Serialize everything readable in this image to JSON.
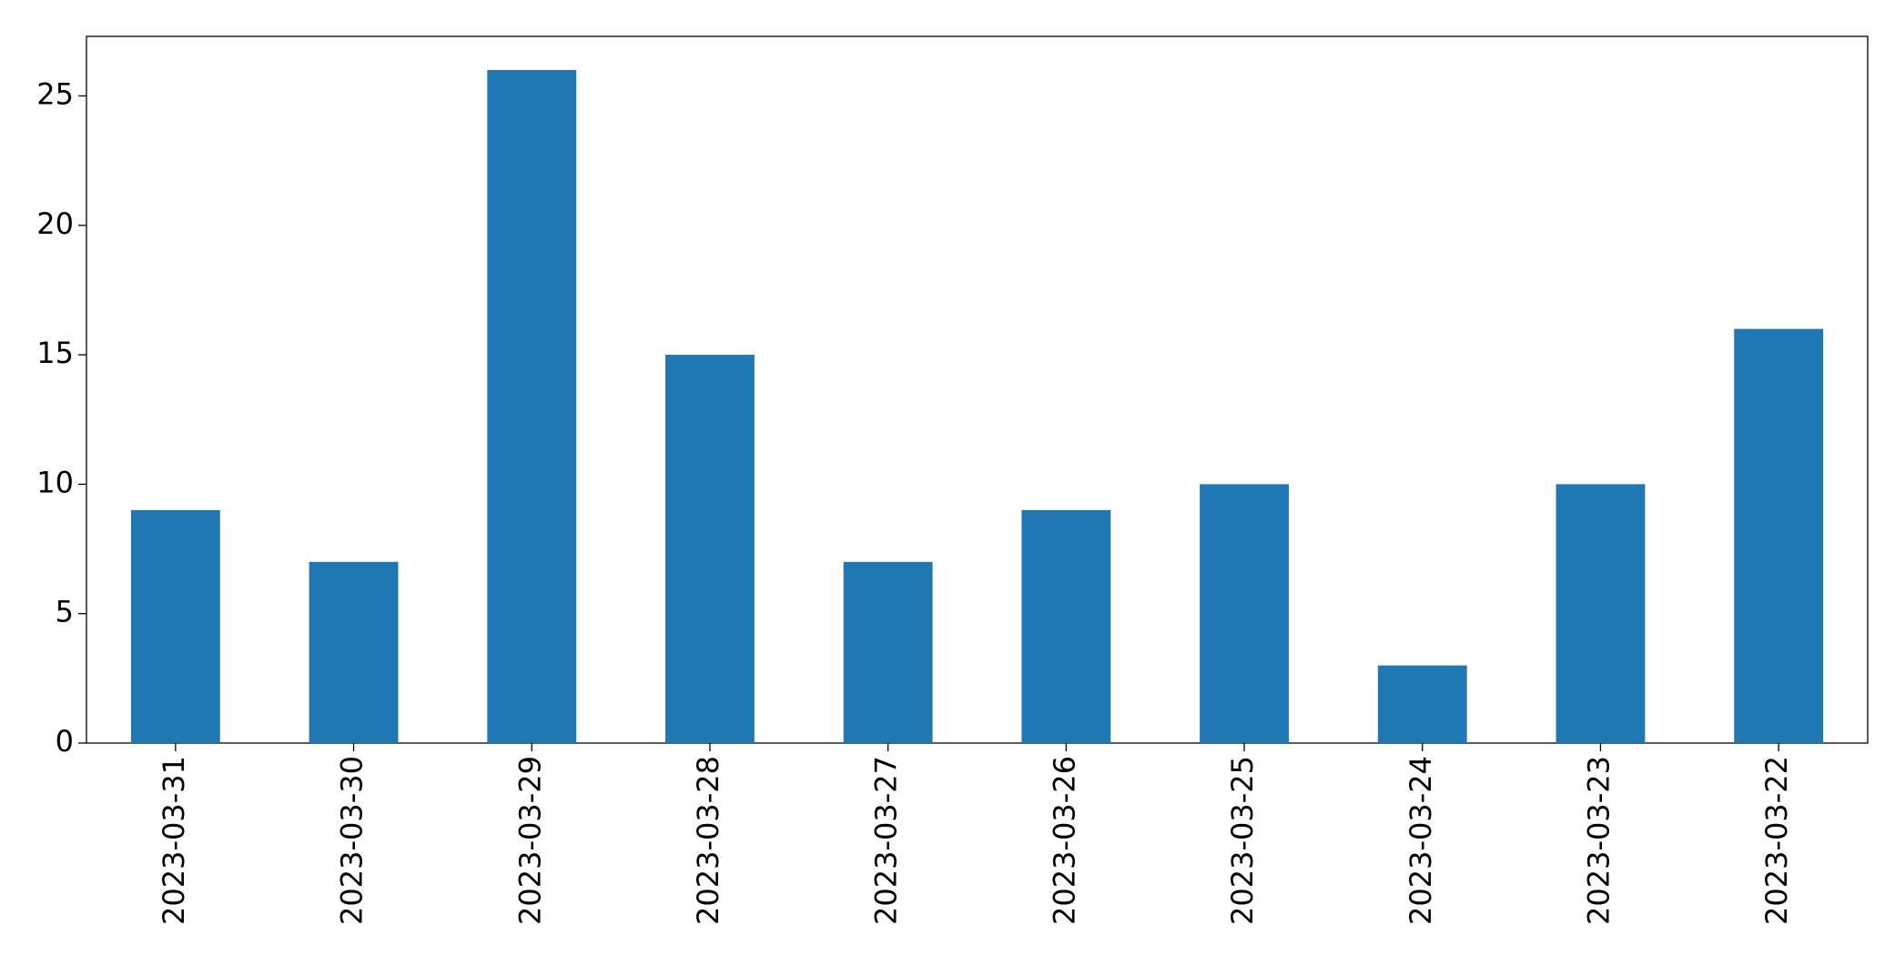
{
  "chart_data": {
    "type": "bar",
    "categories": [
      "2023-03-31",
      "2023-03-30",
      "2023-03-29",
      "2023-03-28",
      "2023-03-27",
      "2023-03-26",
      "2023-03-25",
      "2023-03-24",
      "2023-03-23",
      "2023-03-22"
    ],
    "values": [
      9,
      7,
      26,
      15,
      7,
      9,
      10,
      3,
      10,
      16
    ],
    "color": "#1f77b4",
    "ylim": [
      0,
      27.3
    ],
    "yticks": [
      0,
      5,
      10,
      15,
      20,
      25
    ],
    "grid": false
  }
}
